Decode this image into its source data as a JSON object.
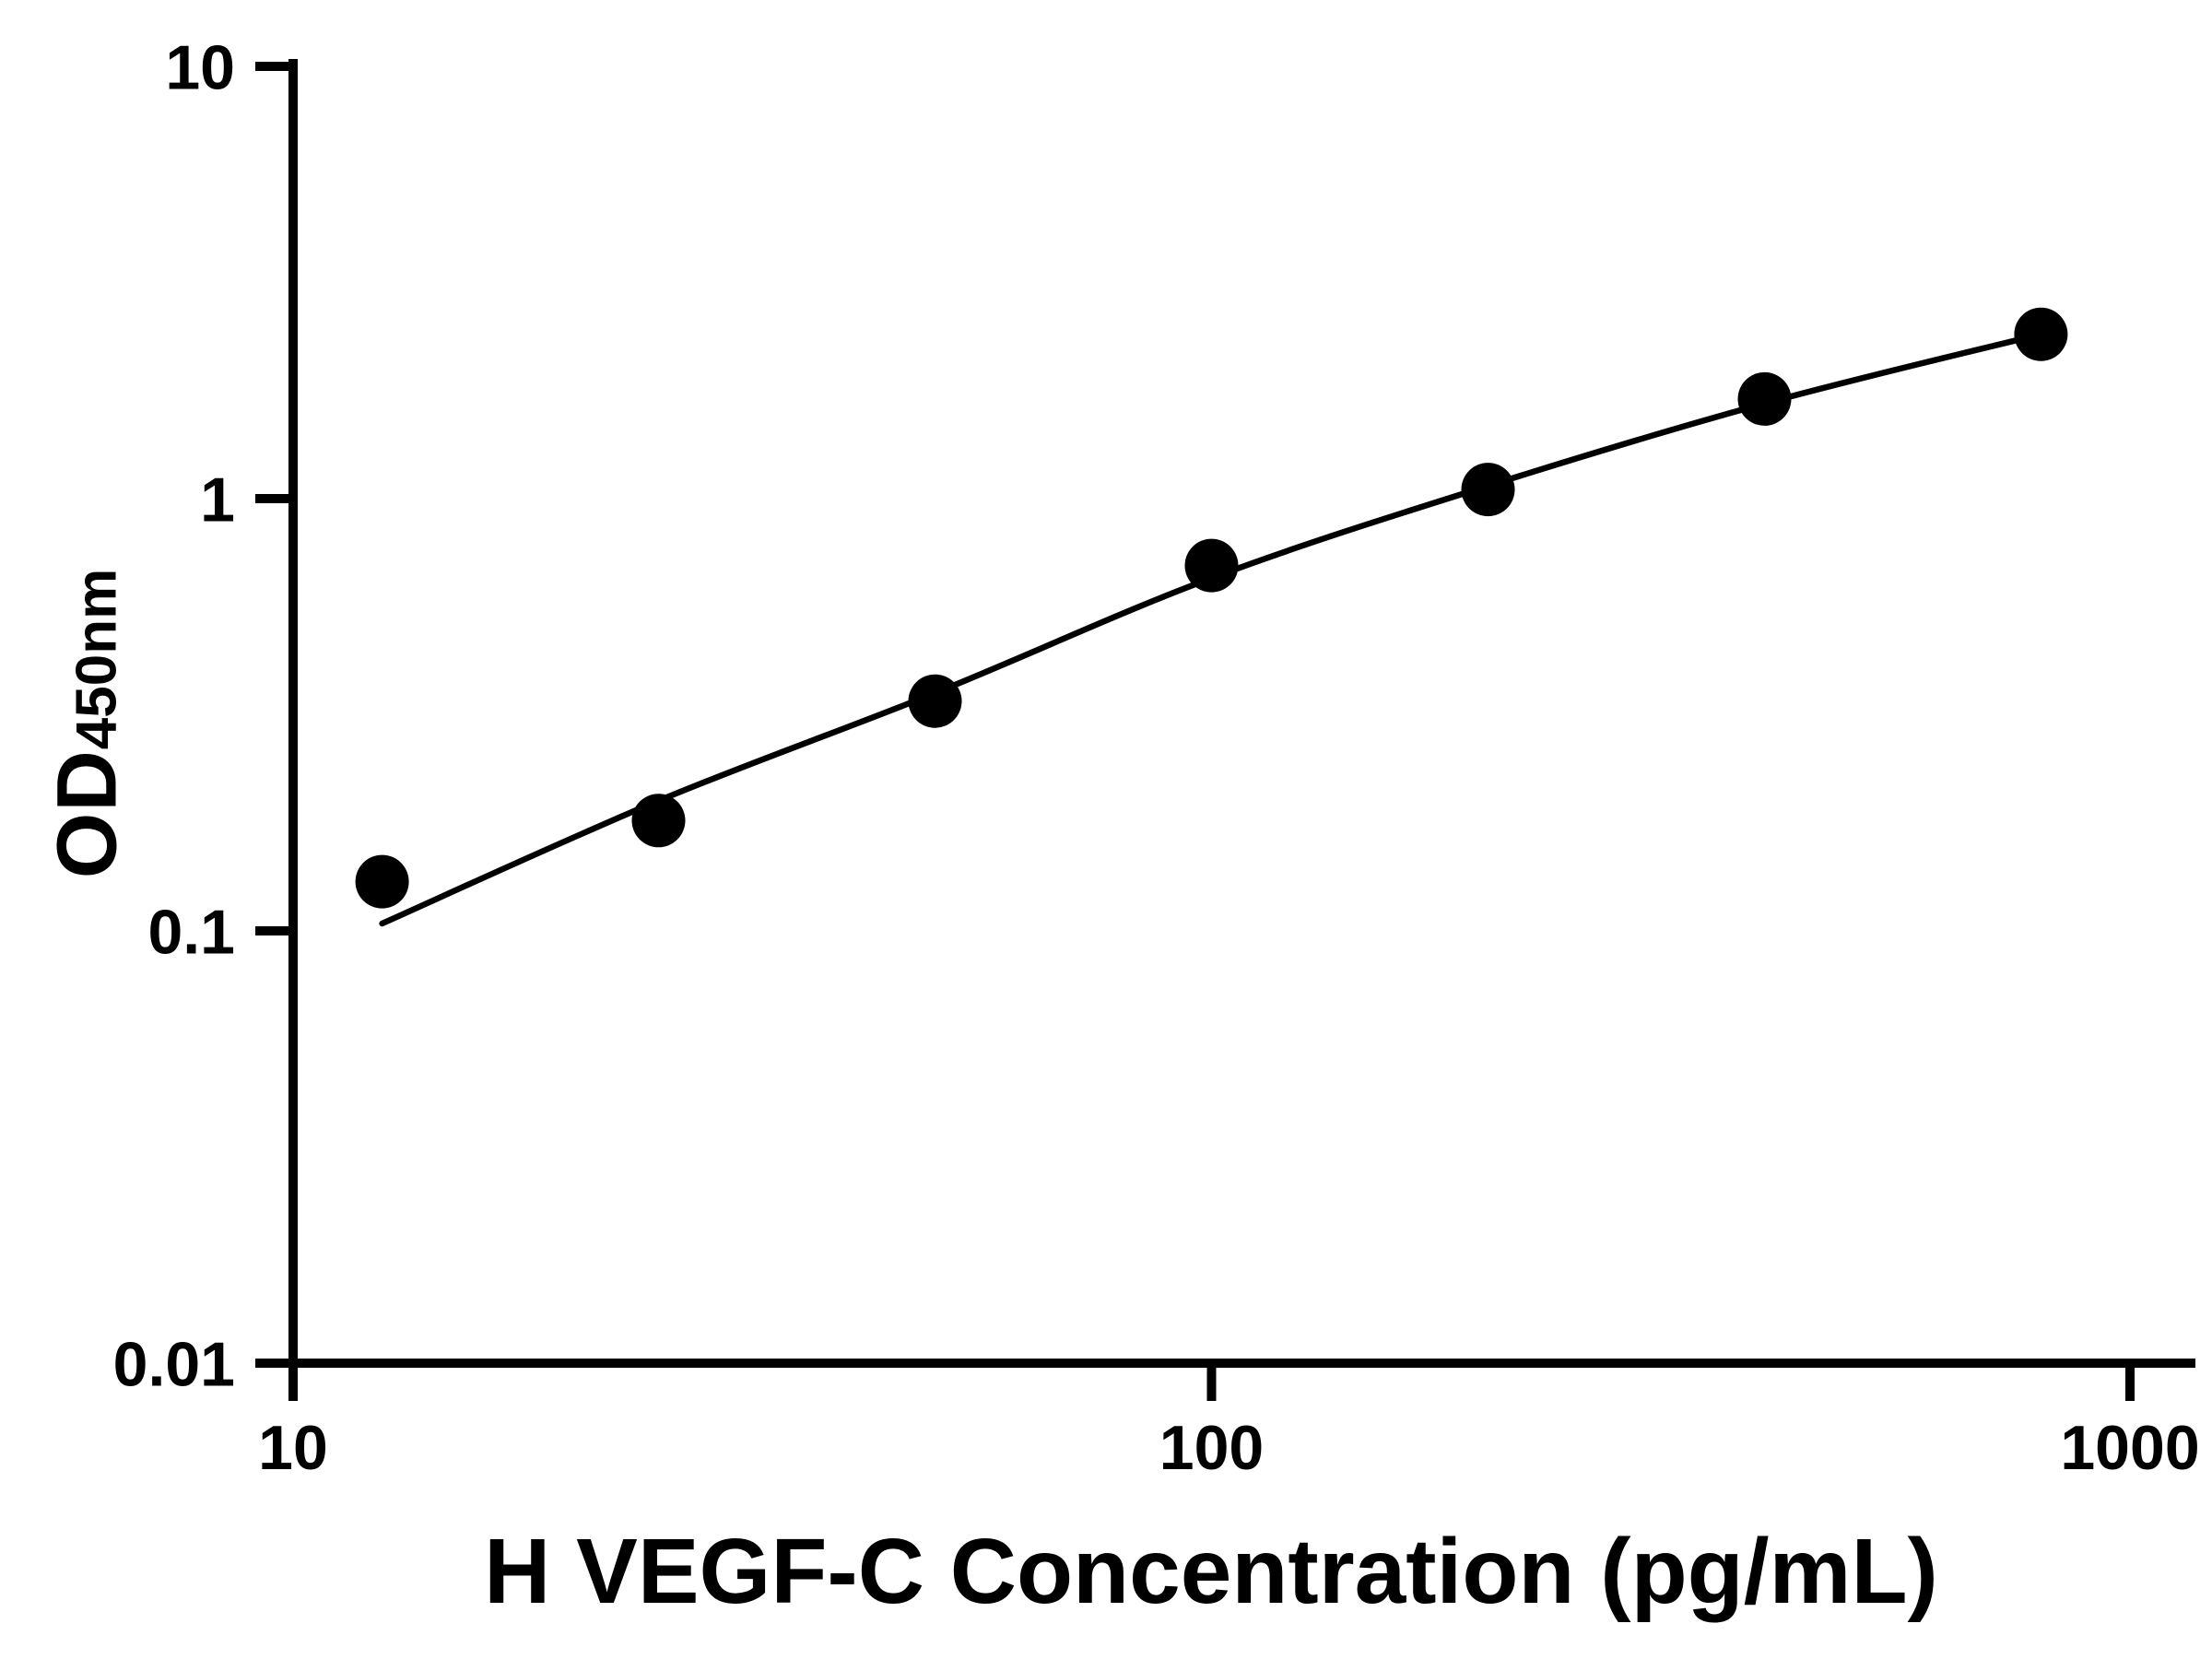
{
  "page": {
    "background_color": "#ffffff",
    "foreground_color": "#000000"
  },
  "chart_data": {
    "type": "scatter",
    "title": "",
    "xlabel": "H VEGF-C Concentration (pg/mL)",
    "ylabel": "OD450nm",
    "ylabel_main": "OD",
    "ylabel_subscript": "450nm",
    "x_scale": "log",
    "y_scale": "log",
    "xlim": [
      10,
      1000
    ],
    "ylim": [
      0.01,
      10
    ],
    "x_ticks": [
      10,
      100,
      1000
    ],
    "x_tick_labels": [
      "10",
      "100",
      "1000"
    ],
    "y_ticks": [
      10,
      1,
      0.1,
      0.01
    ],
    "y_tick_labels": [
      "10",
      "1",
      "0.1",
      "0.01"
    ],
    "grid": false,
    "legend": null,
    "series": [
      {
        "name": "standard-curve-points",
        "type": "scatter",
        "marker": "circle",
        "color": "#000000",
        "x": [
          12.5,
          25,
          50,
          100,
          200,
          400,
          800
        ],
        "y": [
          0.13,
          0.18,
          0.34,
          0.7,
          1.05,
          1.7,
          2.4
        ]
      },
      {
        "name": "fitted-curve",
        "type": "line",
        "color": "#000000",
        "x": [
          12.5,
          25,
          50,
          100,
          200,
          400,
          800
        ],
        "y": [
          0.104,
          0.2,
          0.355,
          0.655,
          1.07,
          1.66,
          2.4
        ]
      }
    ]
  }
}
